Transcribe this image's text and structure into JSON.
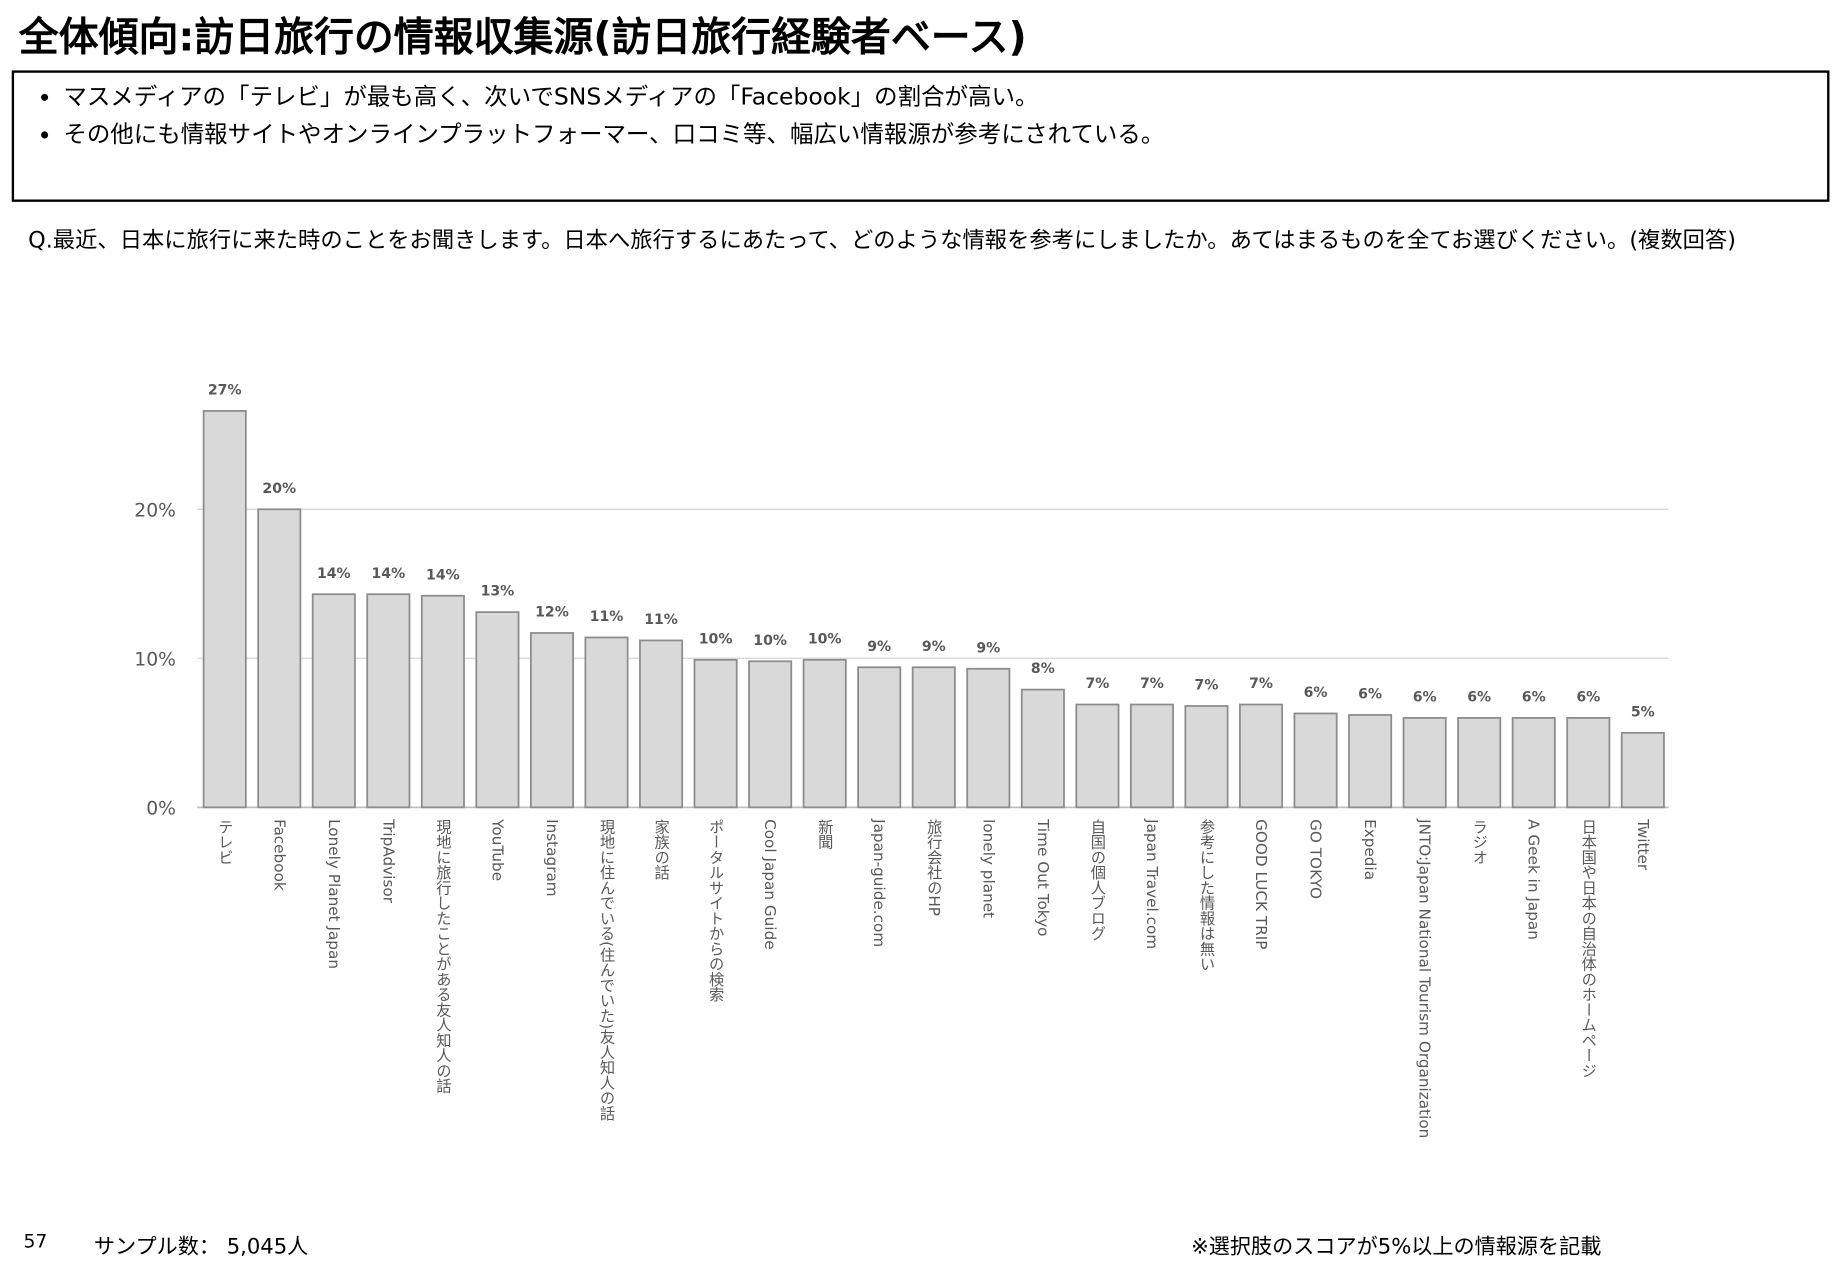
{
  "header": {
    "title": "全体傾向:訪日旅行の情報収集源(訪日旅行経験者ベース)",
    "bullets": [
      "マスメディアの「テレビ」が最も高く、次いでSNSメディアの「Facebook」の割合が高い。",
      "その他にも情報サイトやオンラインプラットフォーマー、口コミ等、幅広い情報源が参考にされている。"
    ],
    "question": "Q.最近、日本に旅行に来た時のことをお聞きします。日本へ旅行するにあたって、どのような情報を参考にしましたか。あてはまるものを全てお選びください。(複数回答)"
  },
  "chart_data": {
    "type": "bar",
    "color": "#d9d9d9",
    "grid": true,
    "categories": [
      "テレビ",
      "Facebook",
      "Lonely Planet Japan",
      "TripAdvisor",
      "現地に旅行したことがある友人知人の話",
      "YouTube",
      "Instagram",
      "現地に住んでいる(住んでいた)友人知人の話",
      "家族の話",
      "ポータルサイトからの検索",
      "Cool Japan Guide",
      "新聞",
      "Japan-guide.com",
      "旅行会社のHP",
      "lonely planet",
      "Time Out Tokyo",
      "自国の個人ブログ",
      "Japan Travel.com",
      "参考にした情報は無い",
      "GOOD LUCK TRIP",
      "GO TOKYO",
      "Expedia",
      "JNTO:Japan National Tourism Organization",
      "ラジオ",
      "A Geek in Japan",
      "日本国や日本の自治体のホームページ",
      "Twitter"
    ],
    "values": [
      26.6,
      20.0,
      14.3,
      14.3,
      14.2,
      13.1,
      11.7,
      11.4,
      11.2,
      9.9,
      9.8,
      9.9,
      9.4,
      9.4,
      9.3,
      7.9,
      6.9,
      6.9,
      6.8,
      6.9,
      6.3,
      6.2,
      6.0,
      6.0,
      6.0,
      6.0,
      5.0
    ],
    "value_labels": [
      "27%",
      "20%",
      "14%",
      "14%",
      "14%",
      "13%",
      "12%",
      "11%",
      "11%",
      "10%",
      "10%",
      "10%",
      "9%",
      "9%",
      "9%",
      "8%",
      "7%",
      "7%",
      "7%",
      "7%",
      "6%",
      "6%",
      "6%",
      "6%",
      "6%",
      "6%",
      "5%"
    ],
    "ylim": [
      0,
      30
    ],
    "yticks": [
      {
        "value": 0,
        "label": "0%"
      },
      {
        "value": 10,
        "label": "10%"
      },
      {
        "value": 20,
        "label": "20%"
      }
    ]
  },
  "footer": {
    "page": "57",
    "sample": "サンプル数： 5,045人",
    "note": "※選択肢のスコアが5%以上の情報源を記載"
  }
}
